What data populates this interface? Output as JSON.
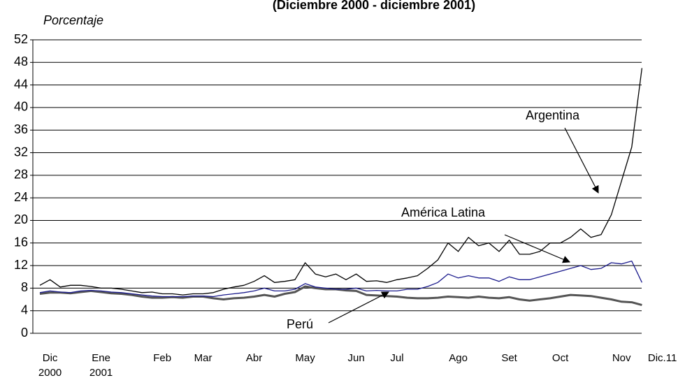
{
  "chart_data": {
    "type": "line",
    "title": "(Diciembre 2000 - diciembre 2001)",
    "y_label": "Porcentaje",
    "annotations": [
      "Argentina",
      "América Latina",
      "Perú"
    ],
    "categories": [
      null,
      "Dic 2000",
      null,
      null,
      null,
      null,
      "Ene 2001",
      null,
      null,
      null,
      null,
      null,
      "Feb",
      null,
      null,
      null,
      "Mar",
      null,
      null,
      null,
      null,
      "Abr",
      null,
      null,
      null,
      null,
      "May",
      null,
      null,
      null,
      null,
      "Jun",
      null,
      null,
      null,
      "Jul",
      null,
      null,
      null,
      null,
      null,
      "Ago",
      null,
      null,
      null,
      null,
      "Set",
      null,
      null,
      null,
      null,
      "Oct",
      null,
      null,
      null,
      null,
      null,
      "Nov",
      null,
      null,
      null,
      "Dic.11"
    ],
    "series": [
      {
        "name": "Argentina",
        "color": "#000000",
        "width": 1.3,
        "values": [
          8.5,
          9.5,
          8.2,
          8.5,
          8.5,
          8.3,
          8.0,
          8.0,
          7.8,
          7.5,
          7.2,
          7.3,
          7.0,
          7.0,
          6.8,
          7.0,
          7.0,
          7.2,
          7.8,
          8.2,
          8.5,
          9.2,
          10.2,
          9.0,
          9.2,
          9.5,
          12.5,
          10.5,
          10.0,
          10.5,
          9.5,
          10.5,
          9.2,
          9.3,
          9.0,
          9.5,
          9.8,
          10.2,
          11.5,
          13.0,
          16.0,
          14.5,
          17.0,
          15.5,
          16.0,
          14.5,
          16.5,
          14.0,
          14.0,
          14.5,
          16.0,
          16.0,
          17.0,
          18.5,
          17.0,
          17.5,
          21.0,
          27.0,
          33.0,
          47.0,
          null,
          null
        ]
      },
      {
        "name": "América Latina",
        "color": "#1a1a8c",
        "width": 1.3,
        "values": [
          7.2,
          7.5,
          7.3,
          7.2,
          7.5,
          7.6,
          7.5,
          7.3,
          7.2,
          7.0,
          6.8,
          6.6,
          6.5,
          6.5,
          6.5,
          6.6,
          6.6,
          6.5,
          6.8,
          7.0,
          7.2,
          7.5,
          8.0,
          7.5,
          7.5,
          7.8,
          8.8,
          8.2,
          8.0,
          7.8,
          7.8,
          8.0,
          7.5,
          7.6,
          7.5,
          7.5,
          7.8,
          7.8,
          8.3,
          9.0,
          10.5,
          9.8,
          10.2,
          9.8,
          9.8,
          9.2,
          10.0,
          9.5,
          9.5,
          10.0,
          10.5,
          11.0,
          11.5,
          12.0,
          11.3,
          11.5,
          12.5,
          12.3,
          12.8,
          9.0,
          null,
          null
        ]
      },
      {
        "name": "Perú",
        "color": "#555555",
        "width": 3,
        "values": [
          7.0,
          7.2,
          7.2,
          7.1,
          7.3,
          7.5,
          7.3,
          7.1,
          7.0,
          6.8,
          6.5,
          6.3,
          6.3,
          6.4,
          6.3,
          6.5,
          6.5,
          6.2,
          6.0,
          6.2,
          6.3,
          6.5,
          6.8,
          6.5,
          7.0,
          7.3,
          8.3,
          8.0,
          7.8,
          7.8,
          7.6,
          7.5,
          6.8,
          6.7,
          6.6,
          6.5,
          6.3,
          6.2,
          6.2,
          6.3,
          6.5,
          6.4,
          6.3,
          6.5,
          6.3,
          6.2,
          6.4,
          6.0,
          5.8,
          6.0,
          6.2,
          6.5,
          6.8,
          6.7,
          6.6,
          6.3,
          6.0,
          5.6,
          5.5,
          5.0,
          null,
          null
        ]
      }
    ],
    "ylim": [
      0,
      52
    ],
    "yticks": [
      0,
      4,
      8,
      12,
      16,
      20,
      24,
      28,
      32,
      36,
      40,
      44,
      48,
      52
    ],
    "grid": true
  }
}
